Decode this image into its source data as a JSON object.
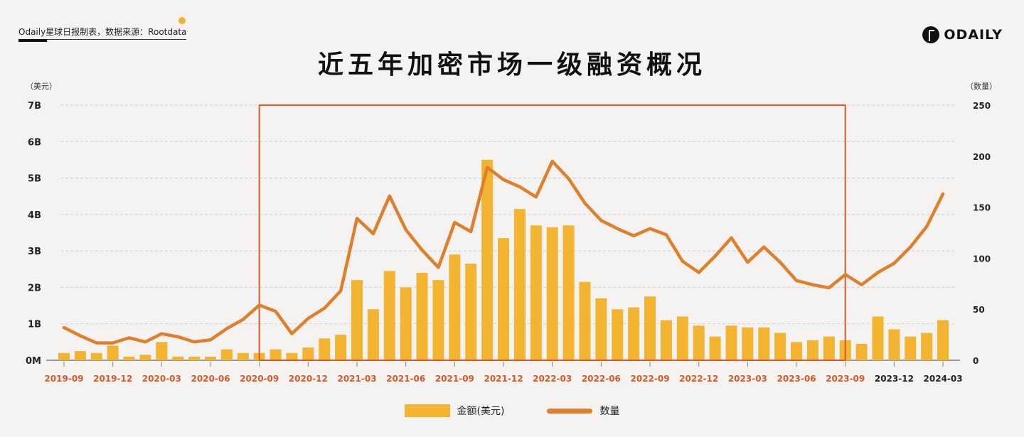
{
  "header": {
    "source": "Odaily星球日报制表，数据来源：Rootdata",
    "logo": "ODAILY",
    "title": "近五年加密市场一级融资概况"
  },
  "colors": {
    "bar": "#f2b431",
    "line": "#e07f2a",
    "highlight_box": "#e0582a",
    "tick_highlight": "#d9582a",
    "tick_normal": "#222222"
  },
  "chart_data": {
    "type": "bar+line",
    "title": "近五年加密市场一级融资概况",
    "left_axis_unit": "（美元）",
    "right_axis_unit": "（数量）",
    "left_ticks": [
      "0M",
      "1B",
      "2B",
      "3B",
      "4B",
      "5B",
      "6B",
      "7B"
    ],
    "left_ylim": [
      0,
      7
    ],
    "right_ticks": [
      "0",
      "50",
      "100",
      "150",
      "200",
      "250"
    ],
    "right_ylim": [
      0,
      250
    ],
    "grid": true,
    "legend_position": "bottom",
    "x_tick_labels": [
      "2019-09",
      "2019-12",
      "2020-03",
      "2020-06",
      "2020-09",
      "2020-12",
      "2021-03",
      "2021-06",
      "2021-09",
      "2021-12",
      "2022-03",
      "2022-06",
      "2022-09",
      "2022-12",
      "2023-03",
      "2023-06",
      "2023-09",
      "2023-12",
      "2024-03"
    ],
    "highlight_range": [
      "2020-09",
      "2023-09"
    ],
    "categories": [
      "2019-09",
      "2019-10",
      "2019-11",
      "2019-12",
      "2020-01",
      "2020-02",
      "2020-03",
      "2020-04",
      "2020-05",
      "2020-06",
      "2020-07",
      "2020-08",
      "2020-09",
      "2020-10",
      "2020-11",
      "2020-12",
      "2021-01",
      "2021-02",
      "2021-03",
      "2021-04",
      "2021-05",
      "2021-06",
      "2021-07",
      "2021-08",
      "2021-09",
      "2021-10",
      "2021-11",
      "2021-12",
      "2022-01",
      "2022-02",
      "2022-03",
      "2022-04",
      "2022-05",
      "2022-06",
      "2022-07",
      "2022-08",
      "2022-09",
      "2022-10",
      "2022-11",
      "2022-12",
      "2023-01",
      "2023-02",
      "2023-03",
      "2023-04",
      "2023-05",
      "2023-06",
      "2023-07",
      "2023-08",
      "2023-09",
      "2023-10",
      "2023-11",
      "2023-12",
      "2024-01",
      "2024-02",
      "2024-03"
    ],
    "series": [
      {
        "name": "金额(美元)",
        "type": "bar",
        "axis": "left",
        "unit": "B",
        "values": [
          0.2,
          0.25,
          0.2,
          0.4,
          0.1,
          0.15,
          0.5,
          0.1,
          0.1,
          0.1,
          0.3,
          0.2,
          0.2,
          0.3,
          0.2,
          0.35,
          0.6,
          0.7,
          2.2,
          1.4,
          2.45,
          2.0,
          2.4,
          2.2,
          2.9,
          2.65,
          5.5,
          3.35,
          4.15,
          3.7,
          3.65,
          3.7,
          2.15,
          1.7,
          1.4,
          1.45,
          1.75,
          1.1,
          1.2,
          0.95,
          0.65,
          0.95,
          0.9,
          0.9,
          0.75,
          0.5,
          0.55,
          0.65,
          0.55,
          0.45,
          1.2,
          0.85,
          0.65,
          0.75,
          1.1
        ]
      },
      {
        "name": "数量",
        "type": "line",
        "axis": "right",
        "values": [
          32,
          24,
          17,
          17,
          22,
          18,
          26,
          23,
          18,
          20,
          31,
          40,
          54,
          48,
          26,
          41,
          51,
          68,
          139,
          124,
          161,
          128,
          108,
          91,
          135,
          126,
          189,
          177,
          170,
          160,
          195,
          178,
          154,
          137,
          129,
          122,
          129,
          123,
          97,
          86,
          102,
          120,
          96,
          111,
          96,
          78,
          74,
          71,
          84,
          74,
          86,
          95,
          111,
          131,
          163
        ]
      }
    ]
  }
}
